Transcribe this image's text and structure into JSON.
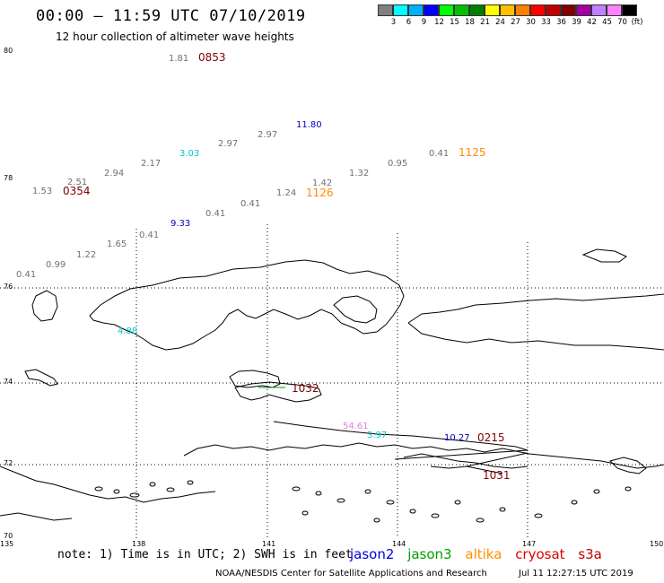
{
  "title": "00:00 – 11:59 UTC 07/10/2019",
  "subtitle": "12 hour collection of altimeter wave heights",
  "legend": {
    "unit": "(ft)",
    "colors": [
      "#808080",
      "#00ffff",
      "#00b0ff",
      "#0000ff",
      "#00ff00",
      "#00c000",
      "#008000",
      "#ffff00",
      "#ffc000",
      "#ff8000",
      "#ff0000",
      "#c00000",
      "#800000",
      "#a000a0",
      "#c080ff",
      "#ff80ff",
      "#000000"
    ],
    "ticks": [
      "3",
      "6",
      "9",
      "12",
      "15",
      "18",
      "21",
      "24",
      "27",
      "30",
      "33",
      "36",
      "39",
      "42",
      "45",
      "70"
    ]
  },
  "axes": {
    "lat_labels": [
      "80",
      "78",
      "76",
      "74",
      "72",
      "70"
    ],
    "lon_labels": [
      "135",
      "138",
      "141",
      "144",
      "147",
      "150"
    ]
  },
  "observations": [
    {
      "text": "1.81",
      "color": "#707070"
    },
    {
      "text": "0853",
      "color": "#800000"
    },
    {
      "text": "11.80",
      "color": "#0000c0"
    },
    {
      "text": "2.97",
      "color": "#707070"
    },
    {
      "text": "2.97",
      "color": "#707070"
    },
    {
      "text": "3.03",
      "color": "#00c8c8"
    },
    {
      "text": "2.17",
      "color": "#707070"
    },
    {
      "text": "2.94",
      "color": "#707070"
    },
    {
      "text": "2.51",
      "color": "#707070"
    },
    {
      "text": "1.53",
      "color": "#707070"
    },
    {
      "text": "0354",
      "color": "#800000"
    },
    {
      "text": "0.41",
      "color": "#707070"
    },
    {
      "text": "1125",
      "color": "#ff8c00"
    },
    {
      "text": "0.95",
      "color": "#707070"
    },
    {
      "text": "1.32",
      "color": "#707070"
    },
    {
      "text": "1.42",
      "color": "#707070"
    },
    {
      "text": "1.24",
      "color": "#707070"
    },
    {
      "text": "1126",
      "color": "#ff8c00"
    },
    {
      "text": "0.41",
      "color": "#707070"
    },
    {
      "text": "0.41",
      "color": "#707070"
    },
    {
      "text": "9.33",
      "color": "#0000c0"
    },
    {
      "text": "0.41",
      "color": "#707070"
    },
    {
      "text": "1.65",
      "color": "#707070"
    },
    {
      "text": "1.22",
      "color": "#707070"
    },
    {
      "text": "0.99",
      "color": "#707070"
    },
    {
      "text": "0.41",
      "color": "#707070"
    },
    {
      "text": "4.88",
      "color": "#00c8c8"
    },
    {
      "text": "1032",
      "color": "#800000"
    },
    {
      "text": "54.61",
      "color": "#e080e0"
    },
    {
      "text": "3.97",
      "color": "#00c8c8"
    },
    {
      "text": "10.27",
      "color": "#0000c0"
    },
    {
      "text": "0215",
      "color": "#800000"
    },
    {
      "text": "1031",
      "color": "#800000"
    }
  ],
  "note": "note: 1) Time is in UTC; 2) SWH is in feet",
  "satellites": [
    {
      "name": "jason2",
      "color": "#0000e0"
    },
    {
      "name": "jason3",
      "color": "#00a000"
    },
    {
      "name": "altika",
      "color": "#ff9000"
    },
    {
      "name": "cryosat",
      "color": "#e00000"
    },
    {
      "name": "s3a",
      "color": "#c00000"
    }
  ],
  "footer_left": "NOAA/NESDIS Center for Satellite Applications and Research",
  "footer_right": "Jul 11 12:27:15 UTC 2019"
}
